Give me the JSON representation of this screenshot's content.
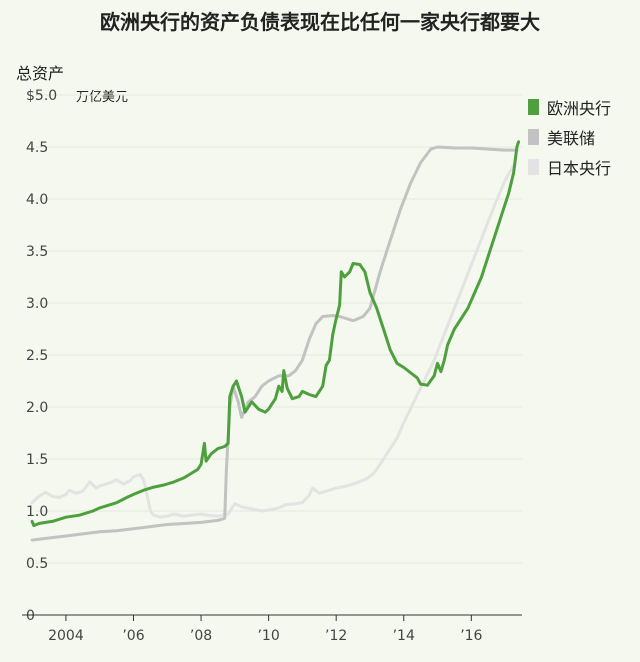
{
  "title": "欧洲央行的资产负债表现在比任何一家央行都要大",
  "chart_data": {
    "type": "line",
    "ylabel": "总资产",
    "unit": "万亿美元",
    "ylim": [
      0,
      5.0
    ],
    "xlim": [
      2002.7,
      2017.5
    ],
    "grid": true,
    "y_ticks": [
      {
        "value": 0,
        "label": "0"
      },
      {
        "value": 0.5,
        "label": "0.5"
      },
      {
        "value": 1.0,
        "label": "1.0"
      },
      {
        "value": 1.5,
        "label": "1.5"
      },
      {
        "value": 2.0,
        "label": "2.0"
      },
      {
        "value": 2.5,
        "label": "2.5"
      },
      {
        "value": 3.0,
        "label": "3.0"
      },
      {
        "value": 3.5,
        "label": "3.5"
      },
      {
        "value": 4.0,
        "label": "4.0"
      },
      {
        "value": 4.5,
        "label": "4.5"
      },
      {
        "value": 5.0,
        "label": "$5.0"
      }
    ],
    "x_ticks": [
      {
        "value": 2004,
        "label": "2004"
      },
      {
        "value": 2006,
        "label": "’06"
      },
      {
        "value": 2008,
        "label": "’08"
      },
      {
        "value": 2010,
        "label": "’10"
      },
      {
        "value": 2012,
        "label": "’12"
      },
      {
        "value": 2014,
        "label": "’14"
      },
      {
        "value": 2016,
        "label": "’16"
      }
    ],
    "legend_position": "right",
    "series": [
      {
        "name": "日本央行",
        "color": "#e3e3e3",
        "points": [
          [
            2003.0,
            1.08
          ],
          [
            2003.2,
            1.14
          ],
          [
            2003.4,
            1.18
          ],
          [
            2003.6,
            1.14
          ],
          [
            2003.8,
            1.13
          ],
          [
            2004.0,
            1.16
          ],
          [
            2004.1,
            1.2
          ],
          [
            2004.3,
            1.17
          ],
          [
            2004.5,
            1.19
          ],
          [
            2004.7,
            1.28
          ],
          [
            2004.9,
            1.22
          ],
          [
            2005.0,
            1.24
          ],
          [
            2005.3,
            1.27
          ],
          [
            2005.5,
            1.3
          ],
          [
            2005.7,
            1.26
          ],
          [
            2005.9,
            1.29
          ],
          [
            2006.0,
            1.33
          ],
          [
            2006.2,
            1.35
          ],
          [
            2006.3,
            1.3
          ],
          [
            2006.4,
            1.16
          ],
          [
            2006.5,
            1.0
          ],
          [
            2006.6,
            0.96
          ],
          [
            2006.8,
            0.94
          ],
          [
            2007.0,
            0.95
          ],
          [
            2007.2,
            0.97
          ],
          [
            2007.5,
            0.95
          ],
          [
            2007.7,
            0.96
          ],
          [
            2008.0,
            0.97
          ],
          [
            2008.2,
            0.96
          ],
          [
            2008.5,
            0.95
          ],
          [
            2008.8,
            0.97
          ],
          [
            2008.9,
            1.02
          ],
          [
            2009.0,
            1.07
          ],
          [
            2009.2,
            1.04
          ],
          [
            2009.5,
            1.02
          ],
          [
            2009.8,
            1.0
          ],
          [
            2010.0,
            1.01
          ],
          [
            2010.3,
            1.03
          ],
          [
            2010.5,
            1.06
          ],
          [
            2010.8,
            1.07
          ],
          [
            2011.0,
            1.08
          ],
          [
            2011.2,
            1.15
          ],
          [
            2011.3,
            1.22
          ],
          [
            2011.5,
            1.17
          ],
          [
            2011.8,
            1.2
          ],
          [
            2012.0,
            1.22
          ],
          [
            2012.3,
            1.24
          ],
          [
            2012.6,
            1.27
          ],
          [
            2012.9,
            1.31
          ],
          [
            2013.1,
            1.36
          ],
          [
            2013.3,
            1.45
          ],
          [
            2013.5,
            1.55
          ],
          [
            2013.8,
            1.7
          ],
          [
            2014.0,
            1.85
          ],
          [
            2014.3,
            2.05
          ],
          [
            2014.6,
            2.25
          ],
          [
            2014.9,
            2.45
          ],
          [
            2015.2,
            2.7
          ],
          [
            2015.5,
            2.95
          ],
          [
            2015.8,
            3.2
          ],
          [
            2016.1,
            3.45
          ],
          [
            2016.4,
            3.7
          ],
          [
            2016.7,
            3.95
          ],
          [
            2017.0,
            4.18
          ],
          [
            2017.3,
            4.35
          ]
        ]
      },
      {
        "name": "美联储",
        "color": "#c2c2c2",
        "points": [
          [
            2003.0,
            0.72
          ],
          [
            2003.5,
            0.74
          ],
          [
            2004.0,
            0.76
          ],
          [
            2004.5,
            0.78
          ],
          [
            2005.0,
            0.8
          ],
          [
            2005.5,
            0.81
          ],
          [
            2006.0,
            0.83
          ],
          [
            2006.5,
            0.85
          ],
          [
            2007.0,
            0.87
          ],
          [
            2007.5,
            0.88
          ],
          [
            2008.0,
            0.89
          ],
          [
            2008.5,
            0.91
          ],
          [
            2008.7,
            0.93
          ],
          [
            2008.75,
            1.4
          ],
          [
            2008.85,
            2.0
          ],
          [
            2008.95,
            2.2
          ],
          [
            2009.1,
            2.05
          ],
          [
            2009.2,
            1.9
          ],
          [
            2009.4,
            2.05
          ],
          [
            2009.6,
            2.1
          ],
          [
            2009.8,
            2.2
          ],
          [
            2010.0,
            2.25
          ],
          [
            2010.3,
            2.3
          ],
          [
            2010.6,
            2.3
          ],
          [
            2010.8,
            2.35
          ],
          [
            2011.0,
            2.45
          ],
          [
            2011.2,
            2.65
          ],
          [
            2011.4,
            2.8
          ],
          [
            2011.6,
            2.87
          ],
          [
            2011.9,
            2.88
          ],
          [
            2012.1,
            2.87
          ],
          [
            2012.3,
            2.85
          ],
          [
            2012.5,
            2.83
          ],
          [
            2012.8,
            2.87
          ],
          [
            2013.0,
            2.95
          ],
          [
            2013.3,
            3.3
          ],
          [
            2013.6,
            3.6
          ],
          [
            2013.9,
            3.9
          ],
          [
            2014.2,
            4.15
          ],
          [
            2014.5,
            4.35
          ],
          [
            2014.8,
            4.48
          ],
          [
            2015.0,
            4.5
          ],
          [
            2015.5,
            4.49
          ],
          [
            2016.0,
            4.49
          ],
          [
            2016.5,
            4.48
          ],
          [
            2017.0,
            4.47
          ],
          [
            2017.35,
            4.47
          ]
        ]
      },
      {
        "name": "欧洲央行",
        "color": "#4e9f3d",
        "points": [
          [
            2003.0,
            0.9
          ],
          [
            2003.05,
            0.86
          ],
          [
            2003.2,
            0.88
          ],
          [
            2003.4,
            0.89
          ],
          [
            2003.6,
            0.9
          ],
          [
            2003.8,
            0.92
          ],
          [
            2004.0,
            0.94
          ],
          [
            2004.2,
            0.95
          ],
          [
            2004.4,
            0.96
          ],
          [
            2004.6,
            0.98
          ],
          [
            2004.8,
            1.0
          ],
          [
            2005.0,
            1.03
          ],
          [
            2005.3,
            1.06
          ],
          [
            2005.5,
            1.08
          ],
          [
            2005.8,
            1.13
          ],
          [
            2006.0,
            1.16
          ],
          [
            2006.3,
            1.2
          ],
          [
            2006.6,
            1.23
          ],
          [
            2006.9,
            1.25
          ],
          [
            2007.2,
            1.28
          ],
          [
            2007.5,
            1.32
          ],
          [
            2007.7,
            1.36
          ],
          [
            2007.9,
            1.4
          ],
          [
            2008.0,
            1.45
          ],
          [
            2008.1,
            1.65
          ],
          [
            2008.15,
            1.48
          ],
          [
            2008.3,
            1.55
          ],
          [
            2008.5,
            1.6
          ],
          [
            2008.7,
            1.62
          ],
          [
            2008.8,
            1.65
          ],
          [
            2008.85,
            2.1
          ],
          [
            2008.95,
            2.2
          ],
          [
            2009.05,
            2.25
          ],
          [
            2009.2,
            2.1
          ],
          [
            2009.3,
            1.95
          ],
          [
            2009.5,
            2.05
          ],
          [
            2009.7,
            1.98
          ],
          [
            2009.9,
            1.95
          ],
          [
            2010.0,
            1.98
          ],
          [
            2010.2,
            2.08
          ],
          [
            2010.3,
            2.2
          ],
          [
            2010.4,
            2.15
          ],
          [
            2010.45,
            2.35
          ],
          [
            2010.55,
            2.18
          ],
          [
            2010.7,
            2.08
          ],
          [
            2010.9,
            2.1
          ],
          [
            2011.0,
            2.15
          ],
          [
            2011.2,
            2.12
          ],
          [
            2011.4,
            2.1
          ],
          [
            2011.6,
            2.2
          ],
          [
            2011.7,
            2.4
          ],
          [
            2011.8,
            2.45
          ],
          [
            2011.9,
            2.7
          ],
          [
            2012.0,
            2.85
          ],
          [
            2012.1,
            2.98
          ],
          [
            2012.15,
            3.3
          ],
          [
            2012.25,
            3.25
          ],
          [
            2012.4,
            3.3
          ],
          [
            2012.5,
            3.38
          ],
          [
            2012.7,
            3.37
          ],
          [
            2012.85,
            3.3
          ],
          [
            2013.0,
            3.1
          ],
          [
            2013.2,
            2.95
          ],
          [
            2013.4,
            2.75
          ],
          [
            2013.6,
            2.55
          ],
          [
            2013.8,
            2.42
          ],
          [
            2014.0,
            2.38
          ],
          [
            2014.2,
            2.33
          ],
          [
            2014.4,
            2.28
          ],
          [
            2014.5,
            2.22
          ],
          [
            2014.7,
            2.21
          ],
          [
            2014.9,
            2.3
          ],
          [
            2015.0,
            2.42
          ],
          [
            2015.1,
            2.34
          ],
          [
            2015.2,
            2.45
          ],
          [
            2015.3,
            2.6
          ],
          [
            2015.5,
            2.75
          ],
          [
            2015.7,
            2.85
          ],
          [
            2015.9,
            2.95
          ],
          [
            2016.1,
            3.1
          ],
          [
            2016.3,
            3.25
          ],
          [
            2016.5,
            3.45
          ],
          [
            2016.7,
            3.65
          ],
          [
            2016.9,
            3.85
          ],
          [
            2017.1,
            4.05
          ],
          [
            2017.25,
            4.25
          ],
          [
            2017.35,
            4.5
          ],
          [
            2017.4,
            4.55
          ]
        ]
      }
    ]
  }
}
